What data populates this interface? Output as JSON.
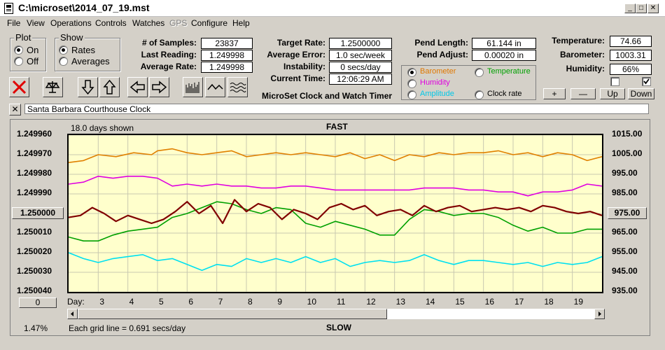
{
  "window": {
    "title": "C:\\microset\\2014_07_19.mst",
    "min_btn": "_",
    "max_btn": "□",
    "close_btn": "✕"
  },
  "menu": [
    "File",
    "View",
    "Operations",
    "Controls",
    "Watches",
    "GPS",
    "Configure",
    "Help"
  ],
  "plot_group": {
    "title": "Plot",
    "options": [
      "On",
      "Off"
    ],
    "selected": "On"
  },
  "show_group": {
    "title": "Show",
    "options": [
      "Rates",
      "Averages"
    ],
    "selected": "Rates"
  },
  "stats": {
    "samples_label": "# of Samples:",
    "samples": "23837",
    "last_label": "Last Reading:",
    "last": "1.249998",
    "avg_label": "Average Rate:",
    "avg": "1.249998",
    "target_label": "Target Rate:",
    "target": "1.2500000",
    "error_label": "Average Error:",
    "error": "1.0 sec/week",
    "instab_label": "Instability:",
    "instab": "0 secs/day",
    "time_label": "Current Time:",
    "time": "12:06:29 AM",
    "pendlen_label": "Pend Length:",
    "pendlen": "61.144 in",
    "pendadj_label": "Pend Adjust:",
    "pendadj": "0.00020 in",
    "temp_label": "Temperature:",
    "temp": "74.66",
    "baro_label": "Barometer:",
    "baro": "1003.31",
    "hum_label": "Humidity:",
    "hum": "66%"
  },
  "app_name": "MicroSet Clock and Watch Timer",
  "aux_group": {
    "options": [
      {
        "label": "Barometer",
        "color": "#e07800",
        "selected": true
      },
      {
        "label": "Temperature",
        "color": "#00a000",
        "selected": false
      },
      {
        "label": "Humidity",
        "color": "#e000e0",
        "selected": false
      },
      {
        "label": "Amplitude",
        "color": "#00c8e8",
        "selected": false
      },
      {
        "label": "Clock rate",
        "color": "#000000",
        "selected": false
      }
    ]
  },
  "right_buttons": {
    "plus": "+",
    "minus": "—",
    "up": "Up",
    "down": "Down"
  },
  "checks": [
    false,
    true
  ],
  "clock_name": "Santa Barbara Courthouse Clock",
  "clear_btn": "✕",
  "chart_data": {
    "type": "line",
    "top_label": "FAST",
    "bottom_label": "SLOW",
    "days_shown": "18.0 days shown",
    "grid_note": "Each grid line = 0.691 secs/day",
    "percent": "1.47%",
    "center_left": "1.250000",
    "center_right": "975.00",
    "scroll_left": "0",
    "day_label": "Day:",
    "days": [
      "3",
      "4",
      "5",
      "6",
      "7",
      "8",
      "9",
      "10",
      "11",
      "12",
      "13",
      "14",
      "15",
      "16",
      "17",
      "18",
      "19"
    ],
    "y_ticks": [
      "1.249960",
      "1.249970",
      "1.249980",
      "1.249990",
      "1.250000",
      "1.250010",
      "1.250020",
      "1.250030",
      "1.250040"
    ],
    "y2_ticks": [
      "1015.00",
      "1005.00",
      "995.00",
      "985.00",
      "975.00",
      "965.00",
      "955.00",
      "945.00",
      "935.00"
    ],
    "ylim": [
      1.24996,
      1.25004
    ],
    "y2lim": [
      935,
      1015
    ],
    "xlim": [
      2.0,
      20.0
    ],
    "series": [
      {
        "color": "#e08000",
        "x": [
          2.0,
          2.5,
          3.0,
          3.6,
          4.2,
          4.8,
          5.0,
          5.5,
          6.0,
          6.5,
          7.0,
          7.5,
          8.0,
          8.5,
          9.0,
          9.5,
          10.0,
          10.5,
          11.0,
          11.5,
          12.0,
          12.5,
          13.0,
          13.5,
          14.0,
          14.5,
          15.0,
          15.5,
          16.0,
          16.5,
          17.0,
          17.5,
          18.0,
          18.5,
          19.0,
          19.5,
          20.0
        ],
        "y": [
          1001,
          1002,
          1005,
          1004,
          1006,
          1005,
          1007,
          1008,
          1006,
          1005,
          1006,
          1007,
          1004,
          1005,
          1006,
          1005,
          1006,
          1005,
          1004,
          1006,
          1003,
          1005,
          1002,
          1005,
          1004,
          1006,
          1005,
          1006,
          1006,
          1007,
          1005,
          1006,
          1004,
          1006,
          1005,
          1002,
          1004
        ]
      },
      {
        "color": "#e000e0",
        "x": [
          2.0,
          2.5,
          3.0,
          3.5,
          4.0,
          4.5,
          5.0,
          5.5,
          6.0,
          6.5,
          7.0,
          7.5,
          8.0,
          8.5,
          9.0,
          9.5,
          10.0,
          10.5,
          11.0,
          11.5,
          12.0,
          12.5,
          13.0,
          13.5,
          14.0,
          14.5,
          15.0,
          15.5,
          16.0,
          16.5,
          17.0,
          17.5,
          18.0,
          18.5,
          19.0,
          19.5,
          20.0
        ],
        "y": [
          990,
          991,
          994,
          993,
          994,
          994,
          993,
          989,
          990,
          989,
          990,
          989,
          989,
          988,
          988,
          989,
          989,
          988,
          987,
          987,
          987,
          987,
          987,
          987,
          988,
          988,
          988,
          987,
          987,
          986,
          986,
          984,
          986,
          986,
          987,
          990,
          989
        ]
      },
      {
        "color": "#00a000",
        "x": [
          2.0,
          2.5,
          3.0,
          3.5,
          4.0,
          4.5,
          5.0,
          5.5,
          6.0,
          6.5,
          7.0,
          7.5,
          8.0,
          8.5,
          9.0,
          9.5,
          10.0,
          10.5,
          11.0,
          11.5,
          12.0,
          12.5,
          13.0,
          13.5,
          14.0,
          14.5,
          15.0,
          15.5,
          16.0,
          16.5,
          17.0,
          17.5,
          18.0,
          18.5,
          19.0,
          19.5,
          20.0
        ],
        "y": [
          963,
          961,
          961,
          964,
          966,
          967,
          968,
          973,
          975,
          978,
          981,
          980,
          977,
          975,
          978,
          977,
          970,
          968,
          971,
          969,
          967,
          964,
          964,
          972,
          977,
          976,
          974,
          975,
          975,
          973,
          969,
          966,
          968,
          965,
          965,
          967,
          967
        ]
      },
      {
        "color": "#00e0f0",
        "x": [
          2.0,
          2.5,
          3.0,
          3.5,
          4.0,
          4.5,
          5.0,
          5.5,
          6.0,
          6.5,
          7.0,
          7.5,
          8.0,
          8.5,
          9.0,
          9.5,
          10.0,
          10.5,
          11.0,
          11.5,
          12.0,
          12.5,
          13.0,
          13.5,
          14.0,
          14.5,
          15.0,
          15.5,
          16.0,
          16.5,
          17.0,
          17.5,
          18.0,
          18.5,
          19.0,
          19.5,
          20.0
        ],
        "y": [
          955,
          952,
          950,
          952,
          953,
          954,
          951,
          952,
          949,
          946,
          949,
          948,
          952,
          950,
          952,
          950,
          953,
          950,
          952,
          948,
          950,
          951,
          950,
          951,
          954,
          951,
          949,
          951,
          951,
          950,
          949,
          950,
          948,
          950,
          949,
          950,
          953
        ]
      },
      {
        "color": "#800000",
        "x": [
          2.0,
          2.4,
          2.8,
          3.2,
          3.6,
          4.0,
          4.4,
          4.8,
          5.2,
          5.6,
          6.0,
          6.4,
          6.8,
          7.2,
          7.6,
          8.0,
          8.4,
          8.8,
          9.2,
          9.6,
          10.0,
          10.4,
          10.8,
          11.2,
          11.6,
          12.0,
          12.4,
          12.8,
          13.2,
          13.6,
          14.0,
          14.4,
          14.8,
          15.2,
          15.6,
          16.0,
          16.4,
          16.8,
          17.2,
          17.6,
          18.0,
          18.4,
          18.8,
          19.2,
          19.6,
          20.0
        ],
        "y": [
          973,
          974,
          978,
          975,
          971,
          974,
          972,
          970,
          972,
          976,
          981,
          975,
          979,
          970,
          982,
          976,
          980,
          978,
          972,
          977,
          975,
          972,
          978,
          980,
          977,
          979,
          974,
          976,
          977,
          974,
          979,
          976,
          978,
          979,
          976,
          977,
          978,
          977,
          978,
          976,
          979,
          978,
          976,
          975,
          976,
          974
        ]
      }
    ]
  }
}
